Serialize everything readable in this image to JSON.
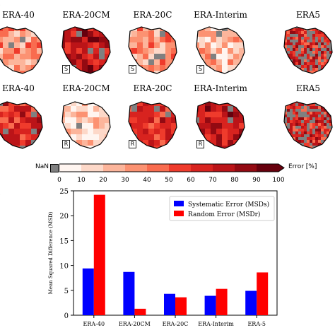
{
  "top_rows": {
    "row1_titles": [
      "ERA-40",
      "ERA-20CM",
      "ERA-20C",
      "ERA-Interim",
      "ERA5"
    ],
    "row2_titles": [
      "ERA-40",
      "ERA-20CM",
      "ERA-20C",
      "ERA-Interim",
      "ERA5"
    ],
    "row1_badge": "S",
    "row2_badge": "R"
  },
  "colorbar": {
    "nan_label": "NaN",
    "ticks": [
      "0",
      "10",
      "20",
      "30",
      "40",
      "50",
      "60",
      "70",
      "80",
      "90",
      "100"
    ],
    "label": "Error [%]",
    "colors": [
      "#fff5f0",
      "#fdd8c8",
      "#fcb59b",
      "#fc9272",
      "#f96c4f",
      "#ef3b2c",
      "#d8231f",
      "#bb1418",
      "#930a12",
      "#67000d"
    ]
  },
  "colors": {
    "systematic": "#0000ff",
    "random": "#ff0000",
    "nan": "#808080"
  },
  "chart_data": {
    "type": "bar",
    "categories": [
      "ERA-40",
      "ERA-20CM",
      "ERA-20C",
      "ERA-Interim",
      "ERA-5"
    ],
    "series": [
      {
        "name": "Systematic Error (MSDs)",
        "values": [
          9.4,
          8.7,
          4.3,
          3.9,
          4.9
        ]
      },
      {
        "name": "Random Error (MSDr)",
        "values": [
          24.2,
          1.3,
          3.6,
          5.3,
          8.6
        ]
      }
    ],
    "ylabel": "Mean Squared Difference (MSD)",
    "xlabel": "",
    "ylim": [
      0,
      25
    ],
    "yticks": [
      0,
      5,
      10,
      15,
      20,
      25
    ],
    "legend_position": "top-right",
    "grid": false
  }
}
